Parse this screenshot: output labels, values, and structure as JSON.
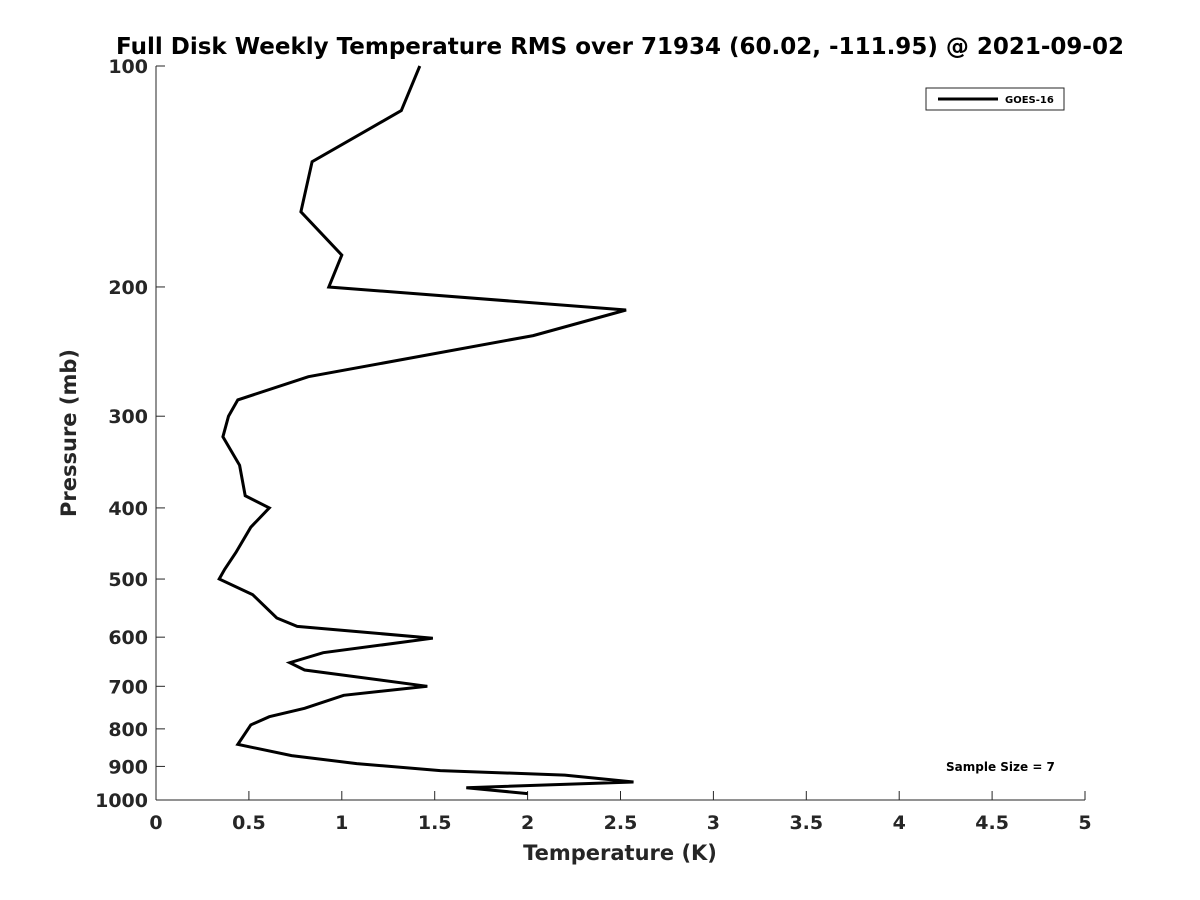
{
  "chart_data": {
    "type": "line",
    "title": "Full Disk Weekly Temperature RMS over 71934 (60.02, -111.95) @ 2021-09-02",
    "xlabel": "Temperature (K)",
    "ylabel": "Pressure (mb)",
    "xlim": [
      0,
      5
    ],
    "ylim": [
      1000,
      100
    ],
    "yscale": "log",
    "x_ticks": [
      "0",
      "0.5",
      "1",
      "1.5",
      "2",
      "2.5",
      "3",
      "3.5",
      "4",
      "4.5",
      "5"
    ],
    "y_ticks": [
      "100",
      "200",
      "300",
      "400",
      "500",
      "600",
      "700",
      "800",
      "900",
      "1000"
    ],
    "grid": false,
    "legend_position": "top-right",
    "annotation": "Sample Size = 7",
    "colors": {
      "line": "#000000",
      "axis": "#262626"
    },
    "series": [
      {
        "name": "GOES-16",
        "points": [
          [
            1.42,
            100
          ],
          [
            1.32,
            115
          ],
          [
            0.84,
            135
          ],
          [
            0.78,
            158
          ],
          [
            1.0,
            181
          ],
          [
            0.93,
            200
          ],
          [
            2.53,
            215
          ],
          [
            2.03,
            233
          ],
          [
            0.82,
            265
          ],
          [
            0.44,
            285
          ],
          [
            0.39,
            300
          ],
          [
            0.36,
            320
          ],
          [
            0.45,
            350
          ],
          [
            0.48,
            385
          ],
          [
            0.61,
            400
          ],
          [
            0.51,
            425
          ],
          [
            0.43,
            460
          ],
          [
            0.37,
            485
          ],
          [
            0.34,
            500
          ],
          [
            0.52,
            525
          ],
          [
            0.65,
            565
          ],
          [
            0.76,
            580
          ],
          [
            1.49,
            602
          ],
          [
            0.9,
            630
          ],
          [
            0.72,
            650
          ],
          [
            0.8,
            665
          ],
          [
            1.46,
            700
          ],
          [
            1.01,
            720
          ],
          [
            0.8,
            750
          ],
          [
            0.61,
            770
          ],
          [
            0.51,
            790
          ],
          [
            0.44,
            840
          ],
          [
            0.73,
            870
          ],
          [
            1.08,
            892
          ],
          [
            1.53,
            912
          ],
          [
            2.2,
            925
          ],
          [
            2.57,
            945
          ],
          [
            1.67,
            962
          ],
          [
            2.0,
            980
          ]
        ]
      }
    ]
  }
}
